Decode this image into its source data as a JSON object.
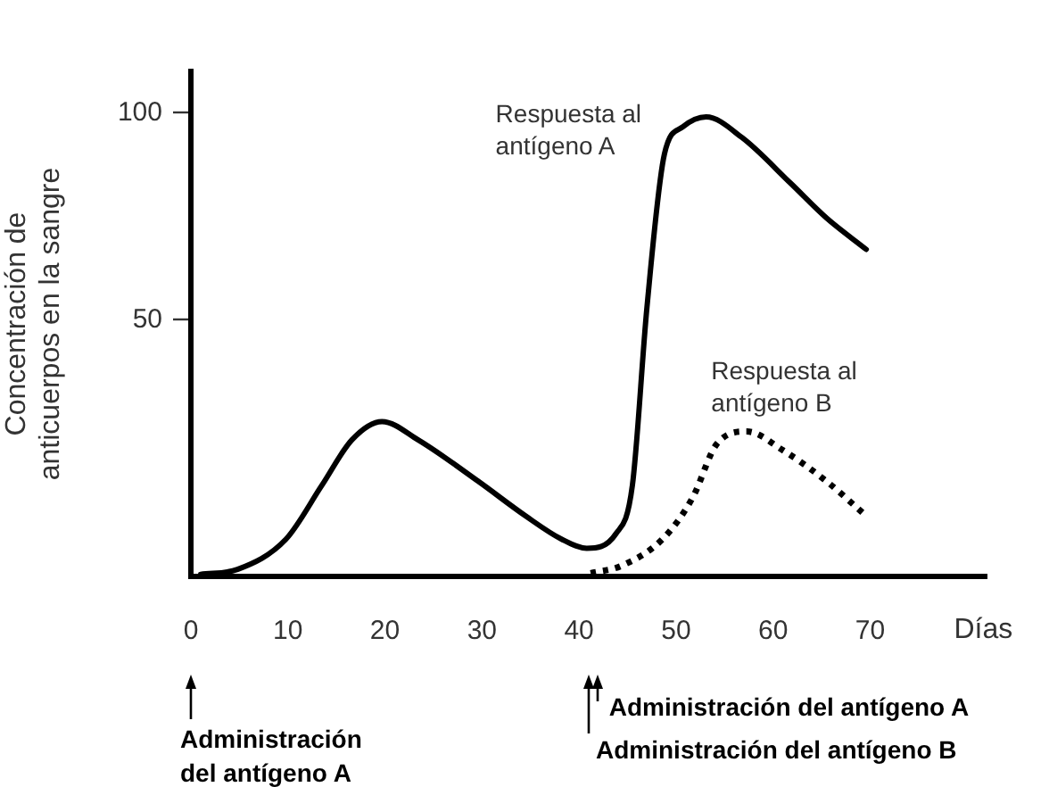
{
  "chart_data": {
    "type": "line",
    "ylabel": "Concentración de\nanticuerpos en la sangre",
    "xlabel": "Días",
    "xlim": [
      0,
      82
    ],
    "xticks": [
      0,
      10,
      20,
      30,
      40,
      50,
      60,
      70
    ],
    "ylim": [
      -12,
      110
    ],
    "yticks": [
      50,
      100
    ],
    "grid": false,
    "legend": false,
    "marker": "none",
    "series": [
      {
        "name": "Respuesta al\nantígeno A",
        "color": "#000000",
        "line_style": "solid",
        "x": [
          1,
          4.8,
          9.8,
          13.5,
          16.6,
          19.7,
          23.4,
          29.6,
          34.5,
          38.2,
          40.8,
          43.8,
          45.5,
          47,
          48.8,
          50.7,
          53.1,
          56.8,
          61.8,
          65.5,
          69.6
        ],
        "values": [
          -11.5,
          -10.3,
          -3,
          10,
          21,
          25.4,
          21,
          11,
          2.6,
          -3,
          -5.2,
          -1.7,
          10,
          53,
          90,
          96.6,
          99,
          94,
          83,
          74.6,
          67
        ]
      },
      {
        "name": "Respuesta al\nantígeno B",
        "color": "#000000",
        "line_style": "dotted",
        "x": [
          41.2,
          44.3,
          48.6,
          51.7,
          54.2,
          57.3,
          61,
          65.5,
          69.6
        ],
        "values": [
          -11.2,
          -9.5,
          -3,
          7,
          20,
          23,
          18.5,
          11,
          2.6
        ]
      }
    ],
    "annotations": [
      "Administración\ndel antígeno A",
      "Administración del antígeno A",
      "Administración del antígeno B"
    ]
  }
}
